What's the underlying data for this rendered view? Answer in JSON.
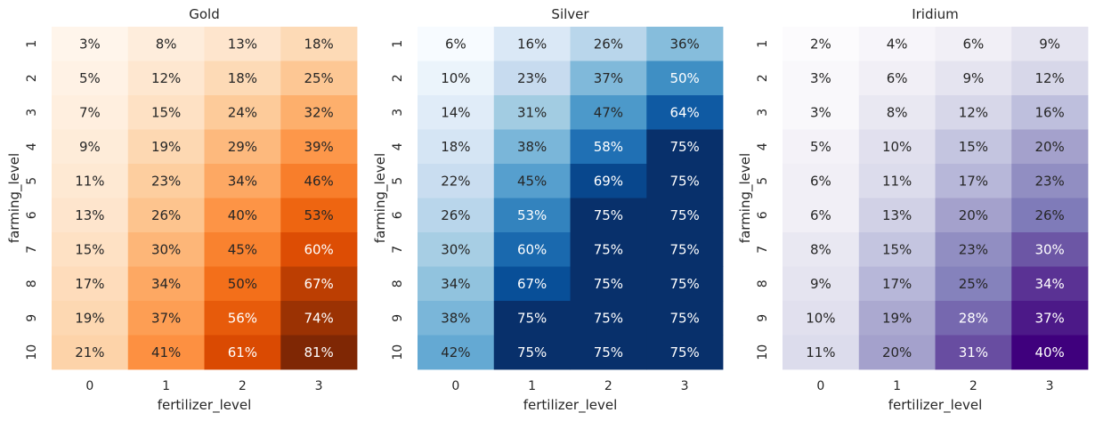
{
  "chart_data": [
    {
      "type": "heatmap",
      "title": "Gold",
      "xlabel": "fertilizer_level",
      "ylabel": "farming_level",
      "x": [
        "0",
        "1",
        "2",
        "3"
      ],
      "y": [
        "1",
        "2",
        "3",
        "4",
        "5",
        "6",
        "7",
        "8",
        "9",
        "10"
      ],
      "values": [
        [
          3,
          8,
          13,
          18
        ],
        [
          5,
          12,
          18,
          25
        ],
        [
          7,
          15,
          24,
          32
        ],
        [
          9,
          19,
          29,
          39
        ],
        [
          11,
          23,
          34,
          46
        ],
        [
          13,
          26,
          40,
          53
        ],
        [
          15,
          30,
          45,
          60
        ],
        [
          17,
          34,
          50,
          67
        ],
        [
          19,
          37,
          56,
          74
        ],
        [
          21,
          41,
          61,
          81
        ]
      ],
      "value_format": "percent",
      "colormap": "Oranges",
      "vmin": 3,
      "vmax": 81,
      "light_color": "#fff5eb",
      "dark_color": "#7f2704"
    },
    {
      "type": "heatmap",
      "title": "Silver",
      "xlabel": "fertilizer_level",
      "ylabel": "farming_level",
      "x": [
        "0",
        "1",
        "2",
        "3"
      ],
      "y": [
        "1",
        "2",
        "3",
        "4",
        "5",
        "6",
        "7",
        "8",
        "9",
        "10"
      ],
      "values": [
        [
          6,
          16,
          26,
          36
        ],
        [
          10,
          23,
          37,
          50
        ],
        [
          14,
          31,
          47,
          64
        ],
        [
          18,
          38,
          58,
          75
        ],
        [
          22,
          45,
          69,
          75
        ],
        [
          26,
          53,
          75,
          75
        ],
        [
          30,
          60,
          75,
          75
        ],
        [
          34,
          67,
          75,
          75
        ],
        [
          38,
          75,
          75,
          75
        ],
        [
          42,
          75,
          75,
          75
        ]
      ],
      "value_format": "percent",
      "colormap": "Blues",
      "vmin": 6,
      "vmax": 75,
      "light_color": "#f7fbff",
      "dark_color": "#08306b"
    },
    {
      "type": "heatmap",
      "title": "Iridium",
      "xlabel": "fertilizer_level",
      "ylabel": "farming_level",
      "x": [
        "0",
        "1",
        "2",
        "3"
      ],
      "y": [
        "1",
        "2",
        "3",
        "4",
        "5",
        "6",
        "7",
        "8",
        "9",
        "10"
      ],
      "values": [
        [
          2,
          4,
          6,
          9
        ],
        [
          3,
          6,
          9,
          12
        ],
        [
          3,
          8,
          12,
          16
        ],
        [
          5,
          10,
          15,
          20
        ],
        [
          6,
          11,
          17,
          23
        ],
        [
          6,
          13,
          20,
          26
        ],
        [
          8,
          15,
          23,
          30
        ],
        [
          9,
          17,
          25,
          34
        ],
        [
          10,
          19,
          28,
          37
        ],
        [
          11,
          20,
          31,
          40
        ]
      ],
      "value_format": "percent",
      "colormap": "Purples",
      "vmin": 2,
      "vmax": 40,
      "light_color": "#fcfbfd",
      "dark_color": "#3f007d"
    }
  ]
}
